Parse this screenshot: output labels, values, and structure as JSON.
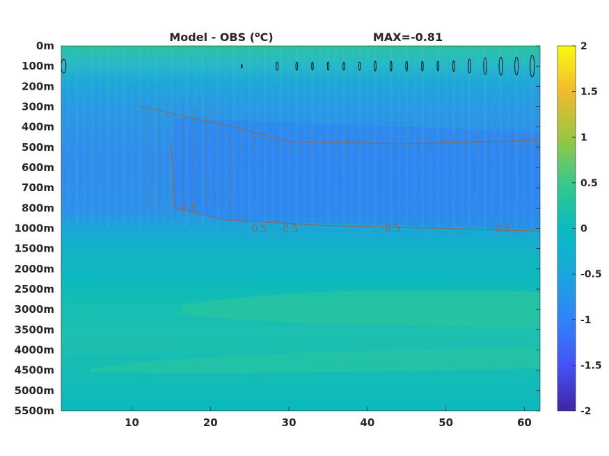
{
  "title_left": "Model - OBS (",
  "title_unit_sup": "o",
  "title_unit_rest": "C)",
  "title_right": "MAX=-0.81",
  "chart_data": {
    "type": "heatmap",
    "title": "Model - OBS (°C)",
    "annotation": "MAX=-0.81",
    "colormap": "parula",
    "clim": [
      -2,
      2
    ],
    "colorbar_ticks": [
      "2",
      "1.5",
      "1",
      "0.5",
      "0",
      "-0.5",
      "-1",
      "-1.5",
      "-2"
    ],
    "x": {
      "lim": [
        1,
        62
      ],
      "ticks": [
        10,
        20,
        30,
        40,
        50,
        60
      ]
    },
    "y": {
      "ticks": [
        "0m",
        "100m",
        "200m",
        "300m",
        "400m",
        "500m",
        "600m",
        "700m",
        "800m",
        "1000m",
        "1500m",
        "2000m",
        "2500m",
        "3000m",
        "3500m",
        "4000m",
        "4500m",
        "5000m",
        "5500m"
      ],
      "scale": "categorical-depth"
    },
    "depth_levels": [
      "0m",
      "100m",
      "200m",
      "300m",
      "400m",
      "500m",
      "600m",
      "700m",
      "800m",
      "1000m",
      "1500m",
      "2000m",
      "2500m",
      "3000m",
      "3500m",
      "4000m",
      "4500m",
      "5000m",
      "5500m"
    ],
    "profile_values": [
      0.15,
      0.05,
      -0.3,
      -0.5,
      -0.6,
      -0.7,
      -0.78,
      -0.8,
      -0.7,
      -0.4,
      -0.15,
      0.0,
      0.05,
      0.1,
      0.1,
      0.05,
      0.1,
      0.0,
      -0.05
    ],
    "contour_labels": [
      {
        "level": "-0.5",
        "x": 17,
        "depth": "800m"
      },
      {
        "level": "-0.5",
        "x": 26,
        "depth": "1000m"
      },
      {
        "level": "-0.5",
        "x": 30,
        "depth": "1000m"
      },
      {
        "level": "-0.5",
        "x": 43,
        "depth": "1000m"
      },
      {
        "level": "-0.5",
        "x": 57,
        "depth": "1000m"
      }
    ],
    "zero_contour_depth": "100m"
  }
}
